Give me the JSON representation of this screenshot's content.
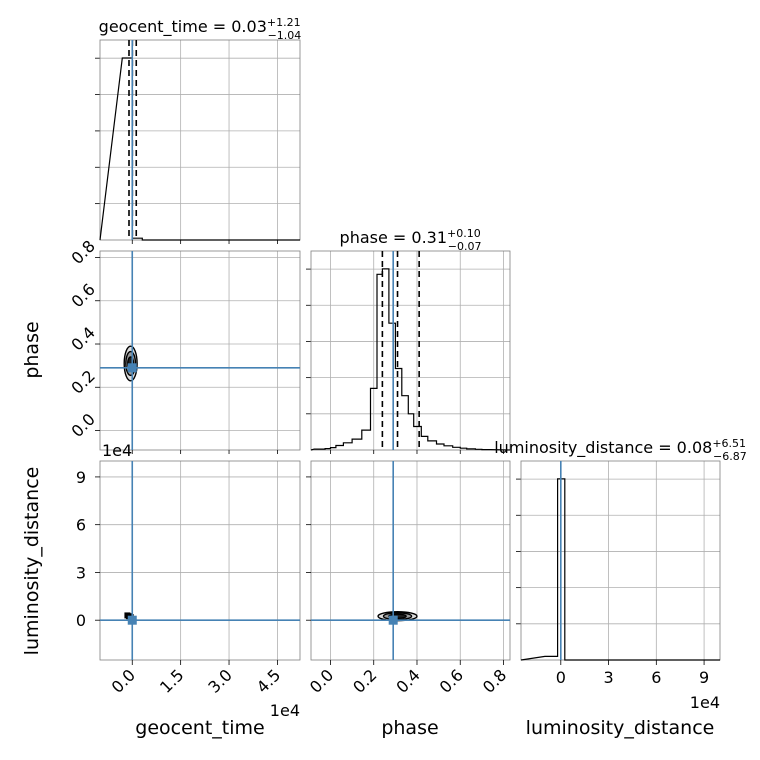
{
  "chart_data": {
    "type": "corner",
    "parameters": [
      "geocent_time",
      "phase",
      "luminosity_distance"
    ],
    "titles": [
      {
        "param": "geocent_time",
        "median": "0.03",
        "plus": "+1.21",
        "minus": "−1.04"
      },
      {
        "param": "phase",
        "median": "0.31",
        "plus": "+0.10",
        "minus": "−0.07"
      },
      {
        "param": "luminosity_distance",
        "median": "0.08",
        "plus": "+6.51",
        "minus": "−6.87"
      }
    ],
    "axis_labels": {
      "x": [
        "geocent_time",
        "phase",
        "luminosity_distance"
      ],
      "y": [
        "phase",
        "luminosity_distance"
      ]
    },
    "offset_text": {
      "geocent_time_x": "1e4",
      "luminosity_distance_x": "1e4",
      "luminosity_distance_y": "1e4"
    },
    "ranges": {
      "geocent_time": [
        -10000,
        52000
      ],
      "phase": [
        -0.09,
        0.83
      ],
      "luminosity_distance": [
        -25000,
        100000
      ]
    },
    "ticks": {
      "geocent_time": {
        "values": [
          0,
          15000,
          30000,
          45000
        ],
        "labels": [
          "0.0",
          "1.5",
          "3.0",
          "4.5"
        ]
      },
      "phase": {
        "values": [
          0.0,
          0.2,
          0.4,
          0.6,
          0.8
        ],
        "labels": [
          "0.0",
          "0.2",
          "0.4",
          "0.6",
          "0.8"
        ]
      },
      "luminosity_distance": {
        "values": [
          0,
          30000,
          60000,
          90000
        ],
        "labels": [
          "0",
          "3",
          "6",
          "9"
        ]
      }
    },
    "truths": {
      "geocent_time": 0,
      "phase": 0.29,
      "luminosity_distance": 0
    },
    "quantiles": {
      "geocent_time": [
        -1010,
        30,
        1240
      ],
      "phase": [
        0.24,
        0.31,
        0.41
      ]
    },
    "hist_1d": {
      "geocent_time": {
        "edges": [
          -3100,
          0,
          3100,
          6200
        ],
        "density": [
          1.0,
          0.01,
          0.0
        ]
      },
      "phase": {
        "edges": [
          -0.075,
          -0.025,
          0.0,
          0.025,
          0.06,
          0.1,
          0.145,
          0.185,
          0.215,
          0.24,
          0.27,
          0.3,
          0.33,
          0.36,
          0.385,
          0.42,
          0.45,
          0.49,
          0.525,
          0.565,
          0.6,
          0.63,
          0.67,
          0.7,
          0.74
        ],
        "density": [
          0.005,
          0.008,
          0.013,
          0.025,
          0.04,
          0.06,
          0.11,
          0.34,
          0.97,
          1.0,
          0.7,
          0.45,
          0.3,
          0.2,
          0.13,
          0.075,
          0.05,
          0.033,
          0.023,
          0.015,
          0.01,
          0.006,
          0.004,
          0.002
        ]
      },
      "luminosity_distance": {
        "edges": [
          -10000,
          -2000,
          2500,
          10000
        ],
        "density": [
          0.02,
          1.0,
          0.0
        ]
      }
    },
    "contours_2d": [
      {
        "x": "geocent_time",
        "y": "phase",
        "cx": -500,
        "cy": 0.31,
        "levels": [
          {
            "rx": 900,
            "ry": 0.03
          },
          {
            "rx": 1500,
            "ry": 0.055
          },
          {
            "rx": 2000,
            "ry": 0.08
          }
        ]
      },
      {
        "x": "phase",
        "y": "luminosity_distance",
        "cx": 0.31,
        "cy": 2500,
        "levels": [
          {
            "rx": 0.04,
            "ry": 1300
          },
          {
            "rx": 0.065,
            "ry": 2100
          },
          {
            "rx": 0.09,
            "ry": 2800
          }
        ]
      }
    ],
    "scatter_2d": [
      {
        "x": "geocent_time",
        "y": "luminosity_distance",
        "points": [
          [
            -1500,
            3000
          ],
          [
            -1000,
            2500
          ],
          [
            -500,
            2000
          ]
        ]
      }
    ]
  }
}
